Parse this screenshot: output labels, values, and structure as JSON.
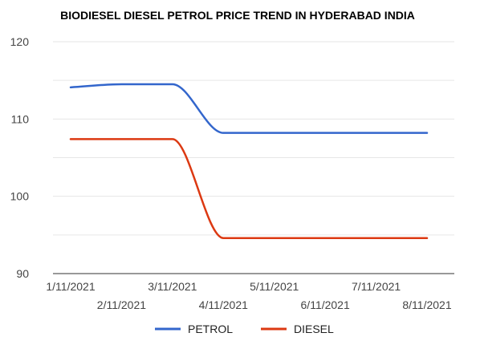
{
  "chart_data": {
    "type": "line",
    "title": "BIODIESEL DIESEL PETROL PRICE TREND IN HYDERABAD INDIA",
    "xlabel": "",
    "ylabel": "",
    "categories": [
      "1/11/2021",
      "2/11/2021",
      "3/11/2021",
      "4/11/2021",
      "5/11/2021",
      "6/11/2021",
      "7/11/2021",
      "8/11/2021"
    ],
    "series": [
      {
        "name": "PETROL",
        "color": "#3366cc",
        "values": [
          114.1,
          114.5,
          114.5,
          108.2,
          108.2,
          108.2,
          108.2,
          108.2
        ]
      },
      {
        "name": "DIESEL",
        "color": "#dc3912",
        "values": [
          107.4,
          107.4,
          107.4,
          94.6,
          94.6,
          94.6,
          94.6,
          94.6
        ]
      }
    ],
    "ylim": [
      90,
      120
    ],
    "yticks": [
      "90",
      "100",
      "110",
      "120"
    ],
    "grid": true,
    "legend": "bottom"
  }
}
